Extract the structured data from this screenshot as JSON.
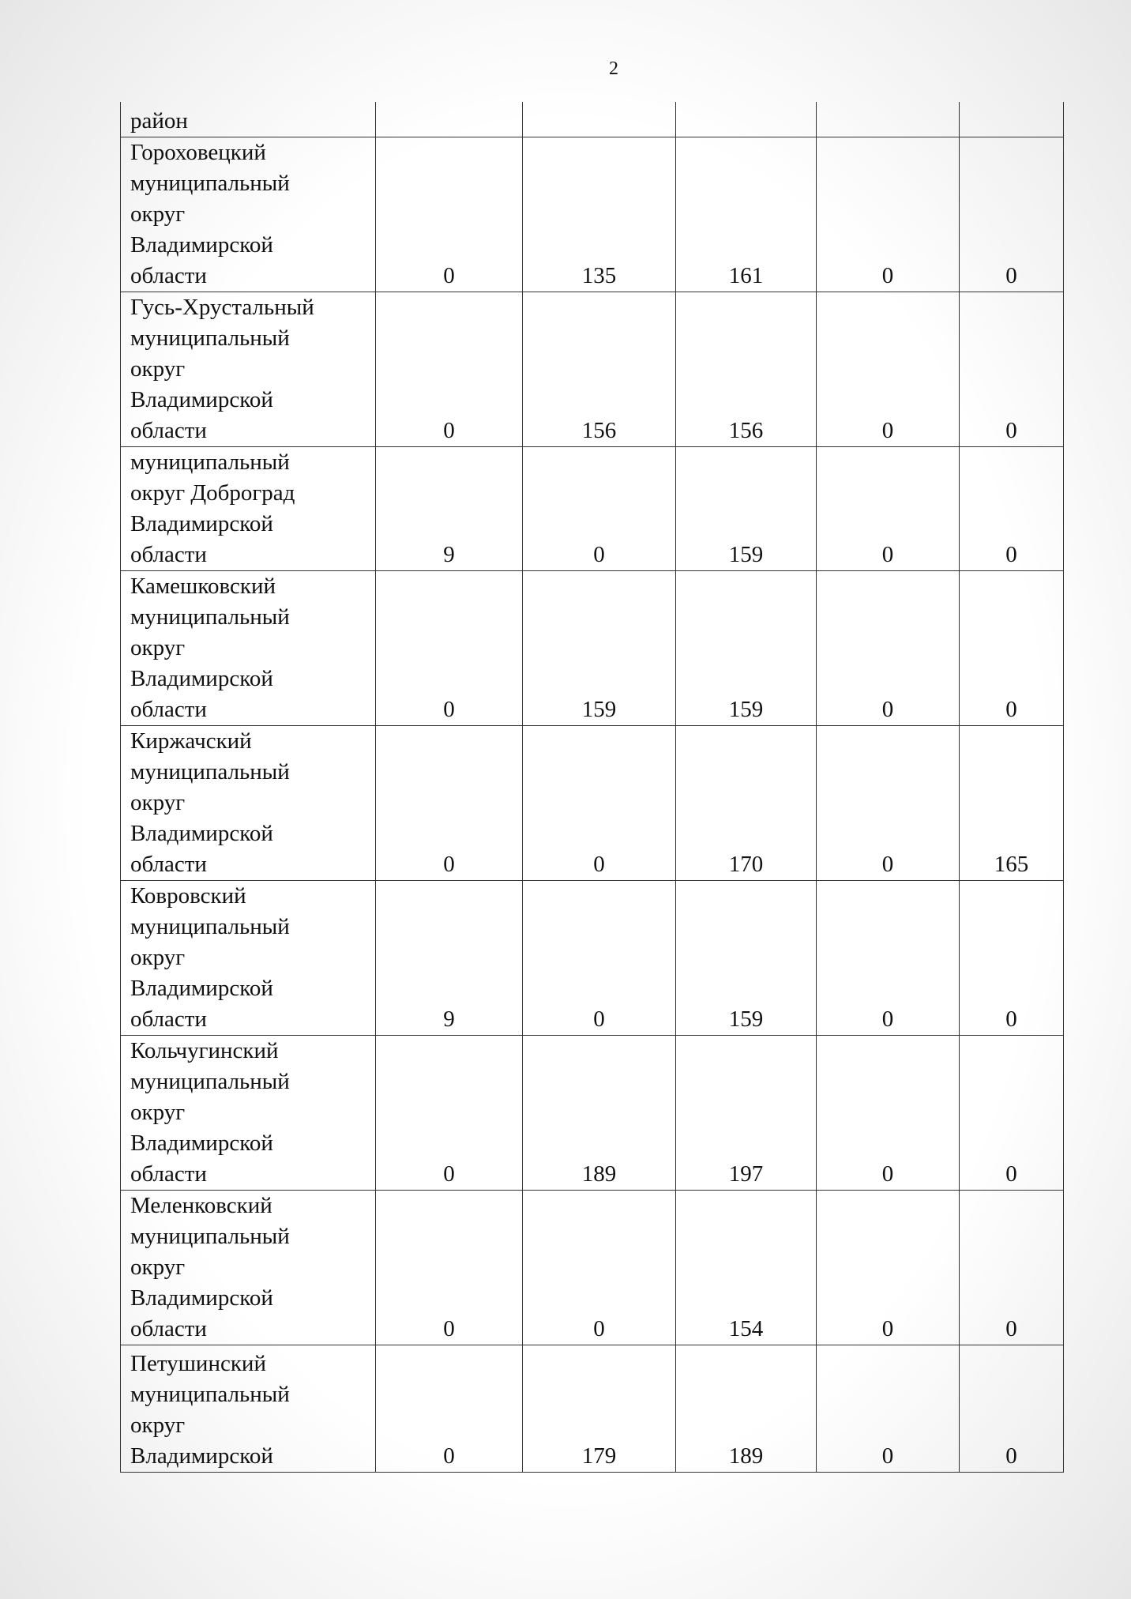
{
  "page_number": "2",
  "table": {
    "rows": [
      {
        "name_lines": [
          "район"
        ],
        "values": []
      },
      {
        "name_lines": [
          "Гороховецкий",
          "муниципальный",
          "округ",
          "Владимирской",
          "области"
        ],
        "values": [
          0,
          135,
          161,
          0,
          0
        ]
      },
      {
        "name_lines": [
          "Гусь-Хрустальный",
          "муниципальный",
          "округ",
          "Владимирской",
          "области"
        ],
        "values": [
          0,
          156,
          156,
          0,
          0
        ]
      },
      {
        "name_lines": [
          "муниципальный",
          "округ Доброград",
          "Владимирской",
          "области"
        ],
        "values": [
          9,
          0,
          159,
          0,
          0
        ]
      },
      {
        "name_lines": [
          "Камешковский",
          "муниципальный",
          "округ",
          "Владимирской",
          "области"
        ],
        "values": [
          0,
          159,
          159,
          0,
          0
        ]
      },
      {
        "name_lines": [
          "Киржачский",
          "муниципальный",
          "округ",
          "Владимирской",
          "области"
        ],
        "values": [
          0,
          0,
          170,
          0,
          165
        ]
      },
      {
        "name_lines": [
          "Ковровский",
          "муниципальный",
          "округ",
          "Владимирской",
          "области"
        ],
        "values": [
          9,
          0,
          159,
          0,
          0
        ]
      },
      {
        "name_lines": [
          "Кольчугинский",
          "муниципальный",
          "округ",
          "Владимирской",
          "области"
        ],
        "values": [
          0,
          189,
          197,
          0,
          0
        ]
      },
      {
        "name_lines": [
          "Меленковский",
          "муниципальный",
          "округ",
          "Владимирской",
          "области"
        ],
        "values": [
          0,
          0,
          154,
          0,
          0
        ]
      },
      {
        "name_lines": [
          "Петушинский",
          "муниципальный",
          "округ",
          "Владимирской"
        ],
        "values": [
          0,
          179,
          189,
          0,
          0
        ]
      }
    ]
  }
}
